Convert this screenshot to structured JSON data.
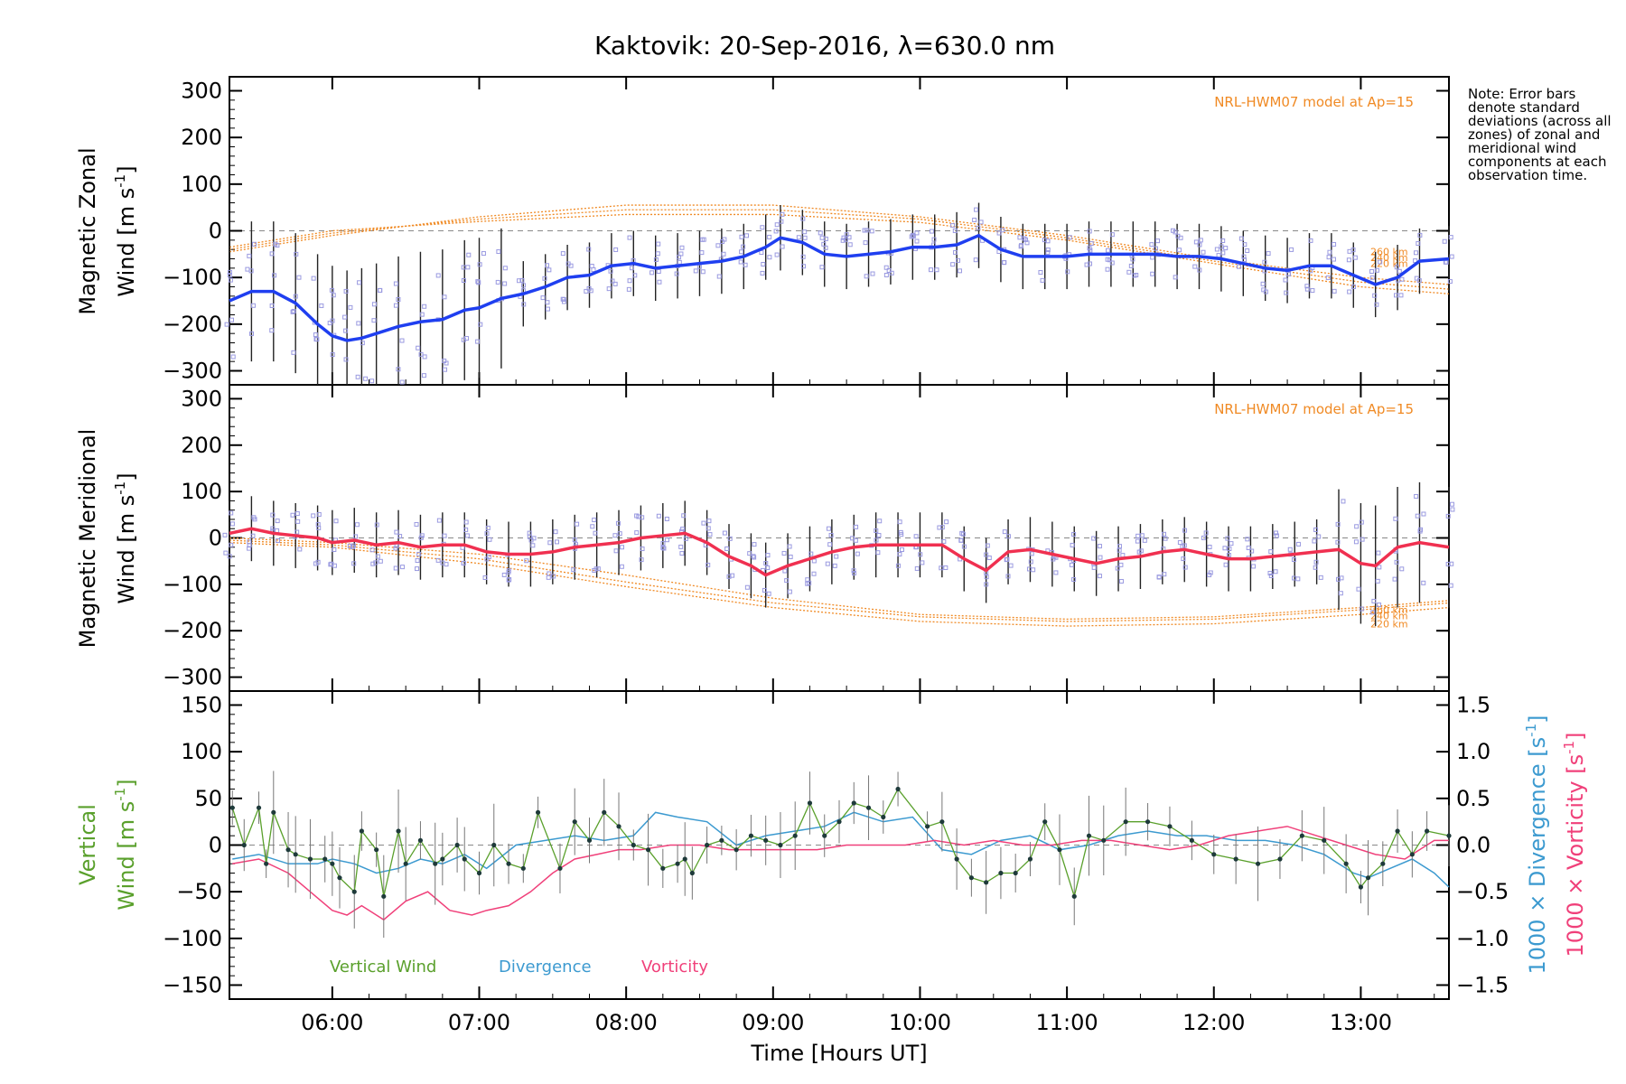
{
  "title": "Kaktovik: 20-Sep-2016, λ=630.0 nm",
  "note": "Note: Error bars denote standard deviations (across all zones) of zonal and meridional wind components at each observation time.",
  "x_axis": {
    "label": "Time [Hours UT]",
    "ticks": [
      "06:00",
      "07:00",
      "08:00",
      "09:00",
      "10:00",
      "11:00",
      "12:00",
      "13:00"
    ]
  },
  "panels": {
    "zonal": {
      "ylabel_line1": "Magnetic Zonal",
      "ylabel_line2": "Wind [m s",
      "ylabel_sup": "-1",
      "ylabel_close": "]",
      "model_label": "NRL-HWM07 model at Ap=15",
      "alt_labels": [
        "260 km",
        "240 km",
        "220 km"
      ],
      "yticks": [
        "300",
        "200",
        "100",
        "0",
        "−100",
        "−200",
        "−300"
      ]
    },
    "meridional": {
      "ylabel_line1": "Magnetic Meridional",
      "ylabel_line2": "Wind [m s",
      "ylabel_sup": "-1",
      "ylabel_close": "]",
      "model_label": "NRL-HWM07 model at Ap=15",
      "alt_labels": [
        "260 km",
        "240 km",
        "220 km"
      ],
      "yticks": [
        "300",
        "200",
        "100",
        "0",
        "−100",
        "−200",
        "−300"
      ]
    },
    "vertical": {
      "ylabel_line1": "Vertical",
      "ylabel_line2": "Wind [m s",
      "ylabel_sup": "-1",
      "ylabel_close": "]",
      "yticks": [
        "150",
        "100",
        "50",
        "0",
        "−50",
        "−100",
        "−150"
      ],
      "right_ticks": [
        "1.5",
        "1.0",
        "0.5",
        "0.0",
        "−0.5",
        "−1.0",
        "−1.5"
      ],
      "right_label_div": "1000 × Divergence [s",
      "right_label_vort": "1000 × Vorticity [s",
      "right_label_sup": "-1",
      "right_label_close": "]",
      "legend": [
        "Vertical Wind",
        "Divergence",
        "Vorticity"
      ]
    }
  },
  "colors": {
    "zonal_line": "#1f3ff0",
    "meridional_line": "#f03050",
    "model": "#f08a24",
    "vertical": "#5aa02c",
    "divergence": "#3c9ad0",
    "vorticity": "#f0407a",
    "zone_markers": "#9a9ae0",
    "error_bar": "#222222"
  },
  "chart_data": [
    {
      "panel": "zonal",
      "type": "line",
      "xlim": [
        5.3,
        13.6
      ],
      "ylim": [
        -330,
        330
      ],
      "series": [
        {
          "values_x": [
            5.3,
            5.45,
            5.6,
            5.75,
            5.9,
            6.0,
            6.1,
            6.2,
            6.3,
            6.45,
            6.6,
            6.75,
            6.9,
            7.0,
            7.15,
            7.3,
            7.45,
            7.6,
            7.75,
            7.9,
            8.05,
            8.2,
            8.35,
            8.5,
            8.65,
            8.8,
            8.95,
            9.05,
            9.2,
            9.35,
            9.5,
            9.65,
            9.8,
            9.95,
            10.1,
            10.25,
            10.4,
            10.55,
            10.7,
            10.85,
            11.0,
            11.15,
            11.3,
            11.45,
            11.6,
            11.75,
            11.9,
            12.05,
            12.2,
            12.35,
            12.5,
            12.65,
            12.8,
            12.95,
            13.1,
            13.25,
            13.4,
            13.6
          ],
          "values_y": [
            -150,
            -130,
            -130,
            -155,
            -200,
            -225,
            -235,
            -230,
            -220,
            -205,
            -195,
            -190,
            -170,
            -165,
            -145,
            -135,
            -120,
            -100,
            -95,
            -75,
            -70,
            -80,
            -75,
            -70,
            -65,
            -55,
            -35,
            -15,
            -25,
            -50,
            -55,
            -50,
            -45,
            -35,
            -35,
            -30,
            -10,
            -40,
            -55,
            -55,
            -55,
            -50,
            -50,
            -50,
            -50,
            -55,
            -55,
            -60,
            -70,
            -80,
            -85,
            -75,
            -75,
            -95,
            -115,
            -100,
            -65,
            -60
          ]
        }
      ],
      "model": [
        {
          "altitude": "260 km",
          "x": [
            5.3,
            6.0,
            7.0,
            8.0,
            9.0,
            10.0,
            11.0,
            12.0,
            13.0,
            13.6
          ],
          "y": [
            -45,
            -10,
            30,
            55,
            55,
            30,
            -10,
            -60,
            -100,
            -115
          ]
        },
        {
          "altitude": "240 km",
          "x": [
            5.3,
            6.0,
            7.0,
            8.0,
            9.0,
            10.0,
            11.0,
            12.0,
            13.0,
            13.6
          ],
          "y": [
            -40,
            -5,
            25,
            45,
            45,
            25,
            -15,
            -65,
            -110,
            -125
          ]
        },
        {
          "altitude": "220 km",
          "x": [
            5.3,
            6.0,
            7.0,
            8.0,
            9.0,
            10.0,
            11.0,
            12.0,
            13.0,
            13.6
          ],
          "y": [
            -35,
            0,
            20,
            35,
            35,
            18,
            -20,
            -70,
            -120,
            -135
          ]
        }
      ]
    },
    {
      "panel": "meridional",
      "type": "line",
      "xlim": [
        5.3,
        13.6
      ],
      "ylim": [
        -330,
        330
      ],
      "series": [
        {
          "values_x": [
            5.3,
            5.45,
            5.6,
            5.75,
            5.9,
            6.0,
            6.15,
            6.3,
            6.45,
            6.6,
            6.75,
            6.9,
            7.05,
            7.2,
            7.35,
            7.5,
            7.65,
            7.8,
            7.95,
            8.1,
            8.25,
            8.4,
            8.55,
            8.7,
            8.85,
            8.95,
            9.1,
            9.25,
            9.4,
            9.55,
            9.7,
            9.85,
            10.0,
            10.15,
            10.3,
            10.45,
            10.6,
            10.75,
            10.9,
            11.05,
            11.2,
            11.35,
            11.5,
            11.65,
            11.8,
            11.95,
            12.1,
            12.25,
            12.4,
            12.55,
            12.7,
            12.85,
            13.0,
            13.1,
            13.25,
            13.4,
            13.6
          ],
          "values_y": [
            10,
            20,
            10,
            5,
            0,
            -10,
            -5,
            -15,
            -10,
            -20,
            -15,
            -15,
            -30,
            -35,
            -35,
            -30,
            -20,
            -15,
            -10,
            0,
            5,
            10,
            -10,
            -40,
            -60,
            -80,
            -60,
            -45,
            -30,
            -20,
            -15,
            -15,
            -15,
            -15,
            -45,
            -70,
            -30,
            -25,
            -35,
            -45,
            -55,
            -45,
            -40,
            -30,
            -25,
            -35,
            -45,
            -45,
            -40,
            -35,
            -30,
            -25,
            -55,
            -60,
            -20,
            -10,
            -20
          ]
        }
      ],
      "model": [
        {
          "altitude": "260 km",
          "x": [
            5.3,
            6.0,
            7.0,
            8.0,
            9.0,
            10.0,
            11.0,
            12.0,
            13.0,
            13.6
          ],
          "y": [
            0,
            -10,
            -35,
            -80,
            -130,
            -165,
            -175,
            -170,
            -150,
            -135
          ]
        },
        {
          "altitude": "240 km",
          "x": [
            5.3,
            6.0,
            7.0,
            8.0,
            9.0,
            10.0,
            11.0,
            12.0,
            13.0,
            13.6
          ],
          "y": [
            -5,
            -15,
            -45,
            -95,
            -140,
            -170,
            -180,
            -175,
            -155,
            -140
          ]
        },
        {
          "altitude": "220 km",
          "x": [
            5.3,
            6.0,
            7.0,
            8.0,
            9.0,
            10.0,
            11.0,
            12.0,
            13.0,
            13.6
          ],
          "y": [
            -10,
            -20,
            -55,
            -105,
            -150,
            -180,
            -190,
            -185,
            -165,
            -150
          ]
        }
      ]
    },
    {
      "panel": "vertical",
      "type": "line",
      "xlim": [
        5.3,
        13.6
      ],
      "ylim": [
        -165,
        165
      ],
      "y2lim": [
        -1.65,
        1.65
      ],
      "series": [
        {
          "name": "Vertical Wind",
          "values_x": [
            5.32,
            5.4,
            5.5,
            5.55,
            5.6,
            5.7,
            5.75,
            5.85,
            5.95,
            6.0,
            6.05,
            6.15,
            6.2,
            6.3,
            6.35,
            6.45,
            6.5,
            6.6,
            6.7,
            6.75,
            6.85,
            6.9,
            7.0,
            7.1,
            7.2,
            7.3,
            7.4,
            7.55,
            7.65,
            7.75,
            7.85,
            7.95,
            8.05,
            8.15,
            8.25,
            8.35,
            8.4,
            8.45,
            8.55,
            8.65,
            8.75,
            8.85,
            8.95,
            9.05,
            9.15,
            9.25,
            9.35,
            9.45,
            9.55,
            9.65,
            9.75,
            9.85,
            10.05,
            10.15,
            10.25,
            10.35,
            10.45,
            10.55,
            10.65,
            10.75,
            10.85,
            10.95,
            11.05,
            11.15,
            11.25,
            11.4,
            11.55,
            11.7,
            11.85,
            12.0,
            12.15,
            12.3,
            12.45,
            12.6,
            12.75,
            12.9,
            13.0,
            13.05,
            13.15,
            13.25,
            13.35,
            13.45,
            13.6
          ],
          "values_y": [
            40,
            0,
            40,
            -20,
            35,
            -5,
            -10,
            -15,
            -15,
            -20,
            -35,
            -50,
            15,
            -5,
            -55,
            15,
            -20,
            5,
            -20,
            -15,
            0,
            -15,
            -30,
            0,
            -20,
            -25,
            35,
            -25,
            25,
            5,
            35,
            20,
            0,
            -5,
            -25,
            -20,
            -15,
            -30,
            0,
            5,
            -5,
            10,
            5,
            0,
            10,
            45,
            10,
            25,
            45,
            40,
            30,
            60,
            20,
            25,
            -15,
            -35,
            -40,
            -30,
            -30,
            -15,
            25,
            -5,
            -55,
            10,
            5,
            25,
            25,
            20,
            5,
            -10,
            -15,
            -20,
            -15,
            10,
            5,
            -20,
            -45,
            -35,
            -20,
            15,
            -10,
            15,
            10
          ]
        },
        {
          "name": "Divergence",
          "values_x": [
            5.32,
            5.5,
            5.7,
            5.9,
            6.0,
            6.15,
            6.3,
            6.45,
            6.6,
            6.75,
            6.9,
            7.05,
            7.25,
            7.45,
            7.65,
            7.85,
            8.05,
            8.2,
            8.35,
            8.55,
            8.75,
            8.95,
            9.15,
            9.35,
            9.55,
            9.75,
            9.95,
            10.15,
            10.35,
            10.55,
            10.75,
            10.95,
            11.15,
            11.35,
            11.55,
            11.75,
            11.95,
            12.15,
            12.35,
            12.55,
            12.75,
            12.95,
            13.05,
            13.2,
            13.35,
            13.5,
            13.6
          ],
          "values_y": [
            -0.15,
            -0.1,
            -0.2,
            -0.2,
            -0.15,
            -0.2,
            -0.3,
            -0.25,
            -0.15,
            -0.2,
            -0.1,
            -0.25,
            0.0,
            0.05,
            0.1,
            0.05,
            0.1,
            0.35,
            0.3,
            0.25,
            0.0,
            0.1,
            0.15,
            0.2,
            0.35,
            0.25,
            0.3,
            -0.05,
            -0.1,
            0.05,
            0.1,
            -0.05,
            0.0,
            0.1,
            0.15,
            0.1,
            0.1,
            0.05,
            0.05,
            0.0,
            -0.1,
            -0.3,
            -0.35,
            -0.25,
            -0.15,
            -0.3,
            -0.45
          ]
        },
        {
          "name": "Vorticity",
          "values_x": [
            5.32,
            5.5,
            5.7,
            5.85,
            6.0,
            6.1,
            6.2,
            6.35,
            6.5,
            6.65,
            6.8,
            6.95,
            7.05,
            7.2,
            7.35,
            7.5,
            7.65,
            7.8,
            7.95,
            8.1,
            8.3,
            8.5,
            8.7,
            8.9,
            9.1,
            9.3,
            9.5,
            9.7,
            9.9,
            10.1,
            10.3,
            10.5,
            10.7,
            10.9,
            11.1,
            11.3,
            11.5,
            11.7,
            11.9,
            12.1,
            12.3,
            12.5,
            12.7,
            12.9,
            13.1,
            13.3,
            13.5,
            13.6
          ],
          "values_y": [
            -0.2,
            -0.15,
            -0.3,
            -0.5,
            -0.7,
            -0.75,
            -0.65,
            -0.8,
            -0.6,
            -0.5,
            -0.7,
            -0.75,
            -0.7,
            -0.65,
            -0.5,
            -0.3,
            -0.15,
            -0.1,
            -0.05,
            -0.05,
            0.0,
            0.0,
            -0.05,
            -0.05,
            -0.05,
            -0.05,
            0.0,
            0.0,
            0.0,
            0.05,
            0.0,
            0.05,
            0.0,
            0.0,
            0.05,
            0.05,
            0.0,
            -0.05,
            0.0,
            0.1,
            0.15,
            0.2,
            0.1,
            0.0,
            -0.1,
            -0.15,
            0.05,
            0.05
          ]
        }
      ]
    }
  ]
}
